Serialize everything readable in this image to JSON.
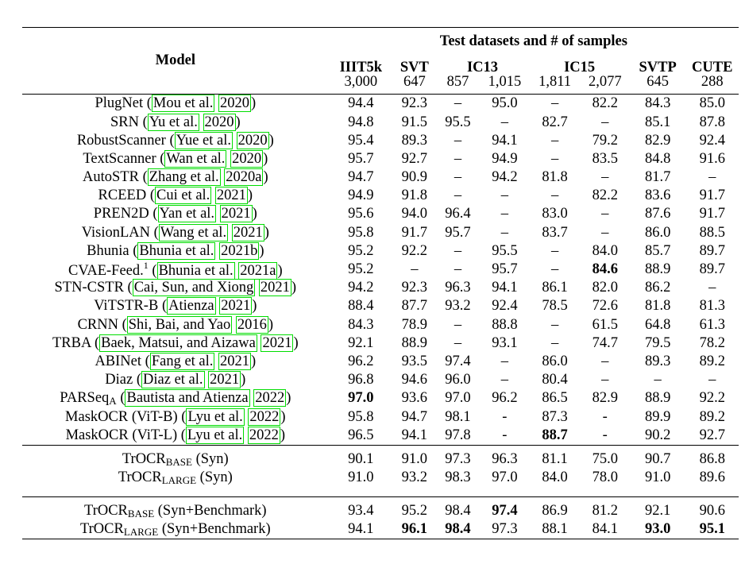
{
  "table": {
    "group_header": "Test datasets and # of samples",
    "model_header": "Model",
    "datasets": [
      {
        "name": "IIIT5k",
        "samples": [
          "3,000"
        ]
      },
      {
        "name": "SVT",
        "samples": [
          "647"
        ]
      },
      {
        "name": "IC13",
        "samples": [
          "857",
          "1,015"
        ]
      },
      {
        "name": "IC15",
        "samples": [
          "1,811",
          "2,077"
        ]
      },
      {
        "name": "SVTP",
        "samples": [
          "645"
        ]
      },
      {
        "name": "CUTE",
        "samples": [
          "288"
        ]
      }
    ],
    "rows": [
      {
        "model": "PlugNet",
        "cite_a": "Mou et al.",
        "cite_b": "2020",
        "values": [
          "94.4",
          "92.3",
          "–",
          "95.0",
          "–",
          "82.2",
          "84.3",
          "85.0"
        ]
      },
      {
        "model": "SRN",
        "cite_a": "Yu et al.",
        "cite_b": "2020",
        "values": [
          "94.8",
          "91.5",
          "95.5",
          "–",
          "82.7",
          "–",
          "85.1",
          "87.8"
        ]
      },
      {
        "model": "RobustScanner",
        "cite_a": "Yue et al.",
        "cite_b": "2020",
        "values": [
          "95.4",
          "89.3",
          "–",
          "94.1",
          "–",
          "79.2",
          "82.9",
          "92.4"
        ]
      },
      {
        "model": "TextScanner",
        "cite_a": "Wan et al.",
        "cite_b": "2020",
        "values": [
          "95.7",
          "92.7",
          "–",
          "94.9",
          "–",
          "83.5",
          "84.8",
          "91.6"
        ]
      },
      {
        "model": "AutoSTR",
        "cite_a": "Zhang et al.",
        "cite_b": "2020a",
        "values": [
          "94.7",
          "90.9",
          "–",
          "94.2",
          "81.8",
          "–",
          "81.7",
          "–"
        ]
      },
      {
        "model": "RCEED",
        "cite_a": "Cui et al.",
        "cite_b": "2021",
        "values": [
          "94.9",
          "91.8",
          "–",
          "–",
          "–",
          "82.2",
          "83.6",
          "91.7"
        ]
      },
      {
        "model": "PREN2D",
        "cite_a": "Yan et al.",
        "cite_b": "2021",
        "values": [
          "95.6",
          "94.0",
          "96.4",
          "–",
          "83.0",
          "–",
          "87.6",
          "91.7"
        ]
      },
      {
        "model": "VisionLAN",
        "cite_a": "Wang et al.",
        "cite_b": "2021",
        "values": [
          "95.8",
          "91.7",
          "95.7",
          "–",
          "83.7",
          "–",
          "86.0",
          "88.5"
        ]
      },
      {
        "model": "Bhunia",
        "cite_a": "Bhunia et al.",
        "cite_b": "2021b",
        "values": [
          "95.2",
          "92.2",
          "–",
          "95.5",
          "–",
          "84.0",
          "85.7",
          "89.7"
        ]
      },
      {
        "model": "CVAE-Feed.",
        "sup": "1",
        "cite_a": "Bhunia et al.",
        "cite_b": "2021a",
        "values": [
          "95.2",
          "–",
          "–",
          "95.7",
          "–",
          "84.6",
          "88.9",
          "89.7"
        ],
        "bold": [
          5
        ]
      },
      {
        "model": "STN-CSTR",
        "cite_a": "Cai, Sun, and Xiong",
        "cite_b": "2021",
        "values": [
          "94.2",
          "92.3",
          "96.3",
          "94.1",
          "86.1",
          "82.0",
          "86.2",
          "–"
        ]
      },
      {
        "model": "ViTSTR-B",
        "cite_a": "Atienza",
        "cite_b": "2021",
        "values": [
          "88.4",
          "87.7",
          "93.2",
          "92.4",
          "78.5",
          "72.6",
          "81.8",
          "81.3"
        ]
      },
      {
        "model": "CRNN",
        "cite_a": "Shi, Bai, and Yao",
        "cite_b": "2016",
        "values": [
          "84.3",
          "78.9",
          "–",
          "88.8",
          "–",
          "61.5",
          "64.8",
          "61.3"
        ]
      },
      {
        "model": "TRBA",
        "cite_a": "Baek, Matsui, and Aizawa",
        "cite_b": "2021",
        "values": [
          "92.1",
          "88.9",
          "–",
          "93.1",
          "–",
          "74.7",
          "79.5",
          "78.2"
        ]
      },
      {
        "model": "ABINet",
        "cite_a": "Fang et al.",
        "cite_b": "2021",
        "values": [
          "96.2",
          "93.5",
          "97.4",
          "–",
          "86.0",
          "–",
          "89.3",
          "89.2"
        ]
      },
      {
        "model": "Diaz",
        "cite_a": "Diaz et al.",
        "cite_b": "2021",
        "values": [
          "96.8",
          "94.6",
          "96.0",
          "–",
          "80.4",
          "–",
          "–",
          "–"
        ]
      },
      {
        "model": "PARSeq",
        "sub": "A",
        "cite_a": "Bautista and Atienza",
        "cite_b": "2022",
        "values": [
          "97.0",
          "93.6",
          "97.0",
          "96.2",
          "86.5",
          "82.9",
          "88.9",
          "92.2"
        ],
        "bold": [
          0
        ]
      },
      {
        "model": "MaskOCR (ViT-B)",
        "cite_a": "Lyu et al.",
        "cite_b": "2022",
        "values": [
          "95.8",
          "94.7",
          "98.1",
          "-",
          "87.3",
          "-",
          "89.9",
          "89.2"
        ]
      },
      {
        "model": "MaskOCR (ViT-L)",
        "cite_a": "Lyu et al.",
        "cite_b": "2022",
        "values": [
          "96.5",
          "94.1",
          "97.8",
          "-",
          "88.7",
          "-",
          "90.2",
          "92.7"
        ],
        "bold": [
          4
        ]
      }
    ],
    "trocr_syn": [
      {
        "model": "TrOCR",
        "sub": "BASE",
        "suffix": "(Syn)",
        "values": [
          "90.1",
          "91.0",
          "97.3",
          "96.3",
          "81.1",
          "75.0",
          "90.7",
          "86.8"
        ]
      },
      {
        "model": "TrOCR",
        "sub": "LARGE",
        "suffix": "(Syn)",
        "values": [
          "91.0",
          "93.2",
          "98.3",
          "97.0",
          "84.0",
          "78.0",
          "91.0",
          "89.6"
        ]
      }
    ],
    "trocr_bench": [
      {
        "model": "TrOCR",
        "sub": "BASE",
        "suffix": "(Syn+Benchmark)",
        "values": [
          "93.4",
          "95.2",
          "98.4",
          "97.4",
          "86.9",
          "81.2",
          "92.1",
          "90.6"
        ],
        "bold": [
          3
        ]
      },
      {
        "model": "TrOCR",
        "sub": "LARGE",
        "suffix": "(Syn+Benchmark)",
        "values": [
          "94.1",
          "96.1",
          "98.4",
          "97.3",
          "88.1",
          "84.1",
          "93.0",
          "95.1"
        ],
        "bold": [
          1,
          2,
          6,
          7
        ]
      }
    ]
  }
}
